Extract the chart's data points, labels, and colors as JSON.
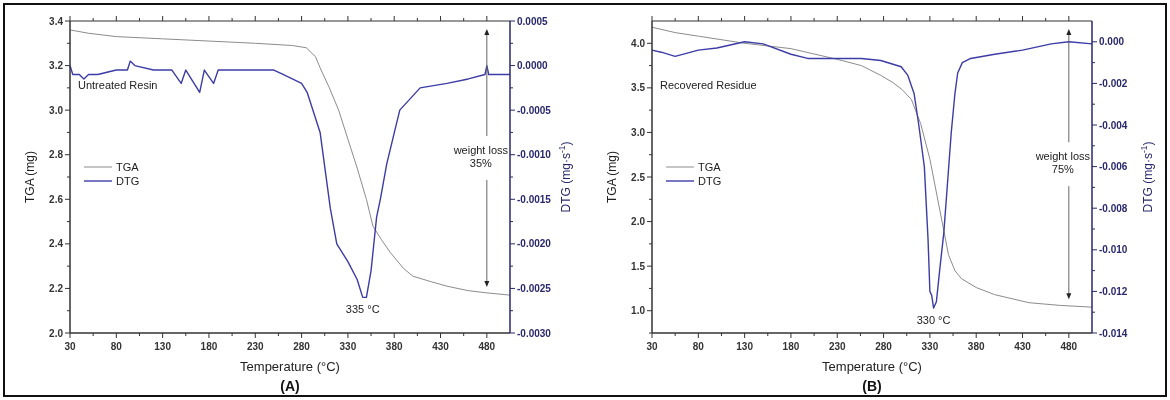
{
  "chart_data": [
    {
      "type": "line",
      "title": "(A)",
      "xlabel": "Temperature (°C)",
      "ylabel": "TGA (mg)",
      "y2label": "DTG (mg·s$^{-1}$)",
      "legend": "left",
      "grid": false,
      "marker": "none",
      "line_style": "solid",
      "xlim": [
        30,
        505
      ],
      "xticks": [
        30,
        {
          "value": 55,
          "label": null
        },
        80,
        {
          "value": 105,
          "label": null
        },
        130,
        {
          "value": 155,
          "label": null
        },
        180,
        {
          "value": 205,
          "label": null
        },
        230,
        {
          "value": 255,
          "label": null
        },
        280,
        {
          "value": 305,
          "label": null
        },
        330,
        {
          "value": 355,
          "label": null
        },
        380,
        {
          "value": 405,
          "label": null
        },
        430,
        {
          "value": 455,
          "label": null
        },
        480
      ],
      "ylim": [
        2.0,
        3.4
      ],
      "yticks": [
        {
          "value": 2.0,
          "label": "2.0"
        },
        {
          "value": 2.1,
          "label": null
        },
        {
          "value": 2.2,
          "label": "2.2"
        },
        {
          "value": 2.3,
          "label": null
        },
        {
          "value": 2.4,
          "label": "2.4"
        },
        {
          "value": 2.5,
          "label": null
        },
        {
          "value": 2.6,
          "label": "2.6"
        },
        {
          "value": 2.7,
          "label": null
        },
        {
          "value": 2.8,
          "label": "2.8"
        },
        {
          "value": 2.9,
          "label": null
        },
        {
          "value": 3.0,
          "label": "3.0"
        },
        {
          "value": 3.1,
          "label": null
        },
        {
          "value": 3.2,
          "label": "3.2"
        },
        {
          "value": 3.3,
          "label": null
        },
        {
          "value": 3.4,
          "label": "3.4"
        }
      ],
      "y2lim": [
        -0.003,
        0.0005
      ],
      "y2ticks": [
        {
          "value": -0.003,
          "label": "-0.0030"
        },
        {
          "value": -0.00275,
          "label": null
        },
        {
          "value": -0.0025,
          "label": "-0.0025"
        },
        {
          "value": -0.00225,
          "label": null
        },
        {
          "value": -0.002,
          "label": "-0.0020"
        },
        {
          "value": -0.00175,
          "label": null
        },
        {
          "value": -0.0015,
          "label": "-0.0015"
        },
        {
          "value": -0.00125,
          "label": null
        },
        {
          "value": -0.001,
          "label": "-0.0010"
        },
        {
          "value": -0.00075,
          "label": null
        },
        {
          "value": -0.0005,
          "label": "-0.0005"
        },
        {
          "value": -0.00025,
          "label": null
        },
        {
          "value": 0,
          "label": "0.0000"
        },
        {
          "value": 0.00025,
          "label": null
        },
        {
          "value": 0.0005,
          "label": "0.0005"
        }
      ],
      "annotations": [
        "Untreated Resin",
        "weight loss\n35%",
        "335 °C"
      ],
      "series": [
        {
          "name": "TGA",
          "color": "#8c8c8c",
          "x": [
            30,
            50,
            80,
            130,
            180,
            230,
            270,
            285,
            295,
            300,
            310,
            320,
            330,
            340,
            350,
            357,
            366,
            376,
            390,
            400,
            420,
            437,
            460,
            480,
            505
          ],
          "values": [
            3.36,
            3.345,
            3.33,
            3.32,
            3.31,
            3.3,
            3.29,
            3.28,
            3.24,
            3.19,
            3.1,
            3.0,
            2.87,
            2.74,
            2.6,
            2.48,
            2.42,
            2.36,
            2.29,
            2.255,
            2.23,
            2.21,
            2.19,
            2.18,
            2.17
          ]
        },
        {
          "name": "DTG",
          "color": "#3c3ca8",
          "axis": "y2",
          "x": [
            30,
            33,
            40,
            45,
            50,
            60,
            80,
            92,
            95,
            100,
            120,
            140,
            150,
            155,
            170,
            175,
            185,
            190,
            210,
            230,
            250,
            260,
            270,
            280,
            286,
            300,
            311,
            318,
            330,
            340,
            346,
            350,
            355,
            361,
            365,
            372,
            386,
            408,
            437,
            460,
            478,
            480,
            482,
            505
          ],
          "values": [
            0,
            -0.0001,
            -0.0001,
            -0.00015,
            -0.0001,
            -0.0001,
            -5e-05,
            -5e-05,
            5e-05,
            0,
            -5e-05,
            -5e-05,
            -0.0002,
            -5e-05,
            -0.0003,
            -5e-05,
            -0.0002,
            -5e-05,
            -5e-05,
            -5e-05,
            -5e-05,
            -0.0001,
            -0.00015,
            -0.0002,
            -0.0003,
            -0.00075,
            -0.0016,
            -0.002,
            -0.0022,
            -0.0024,
            -0.0026,
            -0.0026,
            -0.0023,
            -0.0017,
            -0.0015,
            -0.0011,
            -0.0005,
            -0.00025,
            -0.0002,
            -0.00015,
            -0.0001,
            0,
            -0.0001,
            -0.0001
          ]
        }
      ]
    },
    {
      "type": "line",
      "title": "(B)",
      "xlabel": "Temperature (°C)",
      "ylabel": "TGA (mg)",
      "y2label": "DTG (mg·s$^{-1}$)",
      "legend": "left",
      "grid": false,
      "marker": "none",
      "line_style": "solid",
      "xlim": [
        30,
        505
      ],
      "xticks": [
        30,
        {
          "value": 55,
          "label": null
        },
        80,
        {
          "value": 105,
          "label": null
        },
        130,
        {
          "value": 155,
          "label": null
        },
        180,
        {
          "value": 205,
          "label": null
        },
        230,
        {
          "value": 255,
          "label": null
        },
        280,
        {
          "value": 305,
          "label": null
        },
        330,
        {
          "value": 355,
          "label": null
        },
        380,
        {
          "value": 405,
          "label": null
        },
        430,
        {
          "value": 455,
          "label": null
        },
        480
      ],
      "ylim": [
        0.75,
        4.25
      ],
      "yticks": [
        {
          "value": 0.75,
          "label": null
        },
        {
          "value": 1.0,
          "label": "1.0"
        },
        {
          "value": 1.25,
          "label": null
        },
        {
          "value": 1.5,
          "label": "1.5"
        },
        {
          "value": 1.75,
          "label": null
        },
        {
          "value": 2.0,
          "label": "2.0"
        },
        {
          "value": 2.25,
          "label": null
        },
        {
          "value": 2.5,
          "label": "2.5"
        },
        {
          "value": 2.75,
          "label": null
        },
        {
          "value": 3.0,
          "label": "3.0"
        },
        {
          "value": 3.25,
          "label": null
        },
        {
          "value": 3.5,
          "label": "3.5"
        },
        {
          "value": 3.75,
          "label": null
        },
        {
          "value": 4.0,
          "label": "4.0"
        }
      ],
      "y2lim": [
        -0.014,
        0.001
      ],
      "y2ticks": [
        {
          "value": -0.014,
          "label": "-0.014"
        },
        {
          "value": -0.013,
          "label": null
        },
        {
          "value": -0.012,
          "label": "-0.012"
        },
        {
          "value": -0.011,
          "label": null
        },
        {
          "value": -0.01,
          "label": "-0.010"
        },
        {
          "value": -0.009,
          "label": null
        },
        {
          "value": -0.008,
          "label": "-0.008"
        },
        {
          "value": -0.007,
          "label": null
        },
        {
          "value": -0.006,
          "label": "-0.006"
        },
        {
          "value": -0.005,
          "label": null
        },
        {
          "value": -0.004,
          "label": "-0.004"
        },
        {
          "value": -0.003,
          "label": null
        },
        {
          "value": -0.002,
          "label": "-0.002"
        },
        {
          "value": -0.001,
          "label": null
        },
        {
          "value": 0,
          "label": "0.000"
        }
      ],
      "annotations": [
        "Recovered Residue",
        "weight loss\n75%",
        "330 °C"
      ],
      "series": [
        {
          "name": "TGA",
          "color": "#8c8c8c",
          "x": [
            30,
            55,
            80,
            130,
            180,
            230,
            256,
            277,
            290,
            300,
            310,
            320,
            330,
            339,
            345,
            350,
            357,
            364,
            380,
            400,
            437,
            470,
            505
          ],
          "values": [
            4.18,
            4.12,
            4.08,
            4.0,
            3.94,
            3.82,
            3.75,
            3.64,
            3.56,
            3.48,
            3.37,
            3.1,
            2.7,
            2.22,
            1.9,
            1.63,
            1.45,
            1.36,
            1.26,
            1.18,
            1.09,
            1.06,
            1.04
          ]
        },
        {
          "name": "DTG",
          "color": "#3c3ca8",
          "axis": "y2",
          "x": [
            30,
            40,
            55,
            80,
            100,
            130,
            150,
            180,
            198,
            230,
            256,
            277,
            299,
            306,
            313,
            318,
            324,
            328,
            330,
            332,
            334,
            337,
            341,
            345,
            349,
            353,
            357,
            360,
            365,
            374,
            400,
            430,
            461,
            480,
            505
          ],
          "values": [
            -0.0004,
            -0.0005,
            -0.0007,
            -0.0004,
            -0.0003,
            0,
            -0.0001,
            -0.0006,
            -0.0008,
            -0.0008,
            -0.0008,
            -0.0009,
            -0.0012,
            -0.0016,
            -0.0025,
            -0.004,
            -0.006,
            -0.0095,
            -0.012,
            -0.0122,
            -0.0128,
            -0.0125,
            -0.0108,
            -0.0092,
            -0.0068,
            -0.0044,
            -0.0025,
            -0.0015,
            -0.001,
            -0.0008,
            -0.0006,
            -0.0004,
            -0.0001,
            0,
            -0.0001
          ]
        }
      ]
    }
  ]
}
